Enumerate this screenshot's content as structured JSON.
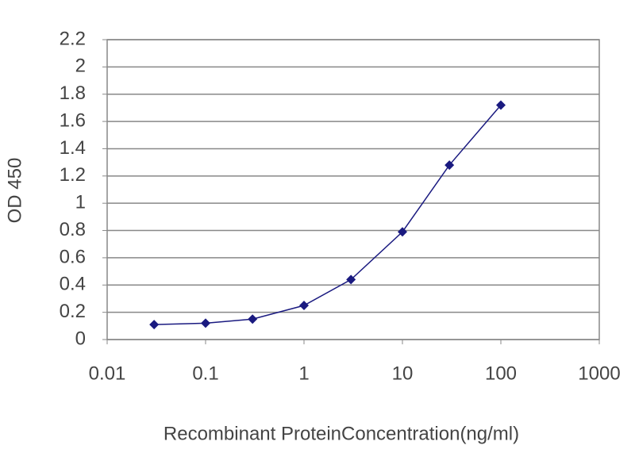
{
  "chart_data": {
    "type": "line",
    "xlabel": "Recombinant ProteinConcentration(ng/ml)",
    "ylabel": "OD 450",
    "x": [
      0.03,
      0.1,
      0.3,
      1,
      3,
      10,
      30,
      100
    ],
    "series": [
      {
        "color": "#1a1a80",
        "values": [
          0.11,
          0.12,
          0.15,
          0.25,
          0.44,
          0.79,
          1.28,
          1.72
        ]
      }
    ],
    "xscale": "log",
    "xlim": [
      0.01,
      1000
    ],
    "xticks": [
      0.01,
      0.1,
      1,
      10,
      100,
      1000
    ],
    "ylim": [
      0,
      2.2
    ],
    "yticks": [
      0,
      0.2,
      0.4,
      0.6,
      0.8,
      1,
      1.2,
      1.4,
      1.6,
      1.8,
      2,
      2.2
    ],
    "grid": true
  }
}
